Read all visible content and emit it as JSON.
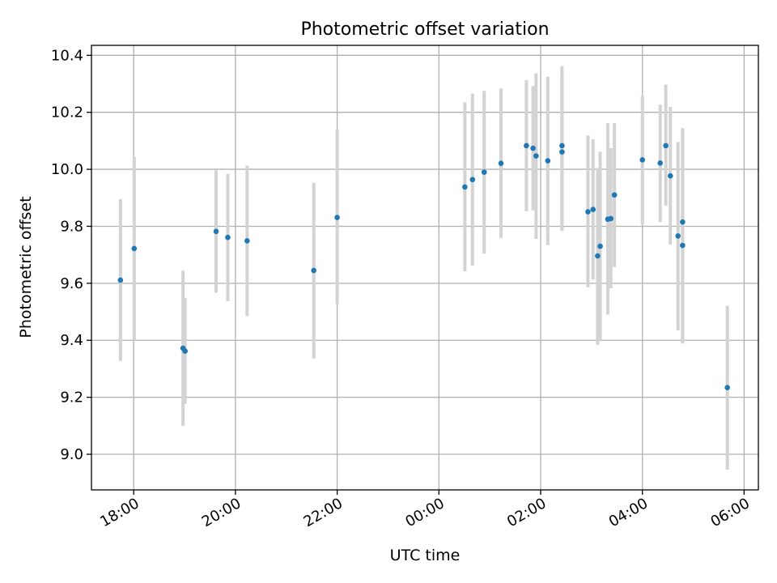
{
  "chart_data": {
    "type": "scatter",
    "title": "Photometric offset variation",
    "xlabel": "UTC time",
    "ylabel": "Photometric offset",
    "x_unit": "hours since 18:00 UTC",
    "xlim": [
      -0.83,
      12.28
    ],
    "ylim": [
      8.875,
      10.435
    ],
    "grid": true,
    "x_ticks": [
      {
        "value": 0,
        "label": "18:00"
      },
      {
        "value": 2,
        "label": "20:00"
      },
      {
        "value": 4,
        "label": "22:00"
      },
      {
        "value": 6,
        "label": "00:00"
      },
      {
        "value": 8,
        "label": "02:00"
      },
      {
        "value": 10,
        "label": "04:00"
      },
      {
        "value": 12,
        "label": "06:00"
      }
    ],
    "y_ticks": [
      {
        "value": 9.0,
        "label": "9.0"
      },
      {
        "value": 9.2,
        "label": "9.2"
      },
      {
        "value": 9.4,
        "label": "9.4"
      },
      {
        "value": 9.6,
        "label": "9.6"
      },
      {
        "value": 9.8,
        "label": "9.8"
      },
      {
        "value": 10.0,
        "label": "10.0"
      },
      {
        "value": 10.2,
        "label": "10.2"
      },
      {
        "value": 10.4,
        "label": "10.4"
      }
    ],
    "point_color": "#1f77b4",
    "errorbar_color": "#d3d3d3",
    "points": [
      {
        "t": -0.26,
        "y": 9.611,
        "lo": 9.327,
        "hi": 9.895
      },
      {
        "t": 0.01,
        "y": 9.722,
        "lo": 9.4,
        "hi": 10.044
      },
      {
        "t": 0.97,
        "y": 9.372,
        "lo": 9.1,
        "hi": 9.644
      },
      {
        "t": 1.01,
        "y": 9.362,
        "lo": 9.177,
        "hi": 9.548
      },
      {
        "t": 1.62,
        "y": 9.782,
        "lo": 9.567,
        "hi": 9.997
      },
      {
        "t": 1.85,
        "y": 9.761,
        "lo": 9.537,
        "hi": 9.984
      },
      {
        "t": 2.23,
        "y": 9.749,
        "lo": 9.485,
        "hi": 10.013
      },
      {
        "t": 3.54,
        "y": 9.645,
        "lo": 9.336,
        "hi": 9.953
      },
      {
        "t": 4.0,
        "y": 9.831,
        "lo": 9.527,
        "hi": 10.14
      },
      {
        "t": 6.51,
        "y": 9.938,
        "lo": 9.642,
        "hi": 10.235
      },
      {
        "t": 6.66,
        "y": 9.964,
        "lo": 9.662,
        "hi": 10.266
      },
      {
        "t": 6.89,
        "y": 9.99,
        "lo": 9.704,
        "hi": 10.275
      },
      {
        "t": 7.22,
        "y": 10.021,
        "lo": 9.759,
        "hi": 10.284
      },
      {
        "t": 7.72,
        "y": 10.083,
        "lo": 9.853,
        "hi": 10.313
      },
      {
        "t": 7.85,
        "y": 10.074,
        "lo": 9.856,
        "hi": 10.292
      },
      {
        "t": 7.91,
        "y": 10.047,
        "lo": 9.756,
        "hi": 10.337
      },
      {
        "t": 8.14,
        "y": 10.03,
        "lo": 9.734,
        "hi": 10.325
      },
      {
        "t": 8.42,
        "y": 10.083,
        "lo": 9.784,
        "hi": 10.362
      },
      {
        "t": 8.42,
        "y": 10.061,
        "lo": 9.784,
        "hi": 10.34
      },
      {
        "t": 8.93,
        "y": 9.851,
        "lo": 9.586,
        "hi": 10.119
      },
      {
        "t": 9.03,
        "y": 9.859,
        "lo": 9.613,
        "hi": 10.105
      },
      {
        "t": 9.12,
        "y": 9.696,
        "lo": 9.384,
        "hi": 10.004
      },
      {
        "t": 9.17,
        "y": 9.73,
        "lo": 9.4,
        "hi": 10.062
      },
      {
        "t": 9.32,
        "y": 9.825,
        "lo": 9.49,
        "hi": 10.162
      },
      {
        "t": 9.38,
        "y": 9.827,
        "lo": 9.583,
        "hi": 10.074
      },
      {
        "t": 9.45,
        "y": 9.91,
        "lo": 9.657,
        "hi": 10.162
      },
      {
        "t": 10.0,
        "y": 10.033,
        "lo": 9.808,
        "hi": 10.258
      },
      {
        "t": 10.35,
        "y": 10.022,
        "lo": 9.815,
        "hi": 10.227
      },
      {
        "t": 10.46,
        "y": 10.083,
        "lo": 9.872,
        "hi": 10.297
      },
      {
        "t": 10.55,
        "y": 9.977,
        "lo": 9.736,
        "hi": 10.219
      },
      {
        "t": 10.7,
        "y": 9.766,
        "lo": 9.435,
        "hi": 10.096
      },
      {
        "t": 10.79,
        "y": 9.815,
        "lo": 9.389,
        "hi": 10.144
      },
      {
        "t": 10.79,
        "y": 9.733,
        "lo": 9.389,
        "hi": 10.144
      },
      {
        "t": 11.67,
        "y": 9.234,
        "lo": 8.946,
        "hi": 9.521
      }
    ]
  }
}
